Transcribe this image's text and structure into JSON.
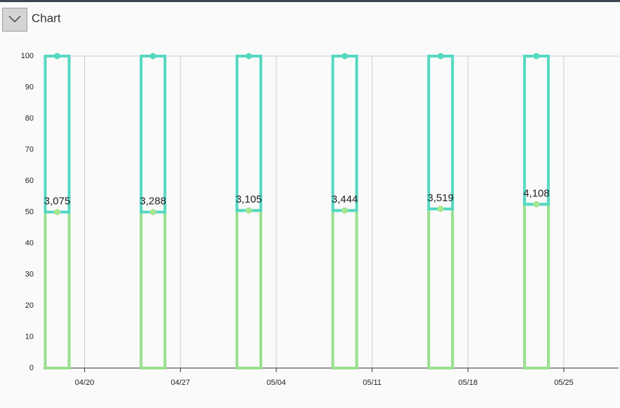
{
  "header": {
    "label": "Chart"
  },
  "chart_data": {
    "type": "bar",
    "stacked": true,
    "x": [
      "04/18",
      "04/25",
      "05/02",
      "05/09",
      "05/16",
      "05/23"
    ],
    "xlim": [
      "04/17",
      "05/29"
    ],
    "xticks": [
      "04/20",
      "04/27",
      "05/04",
      "05/11",
      "05/18",
      "05/25"
    ],
    "series": [
      {
        "color": "#98e08e",
        "values": [
          50,
          50,
          50.5,
          50.5,
          51,
          52.5
        ]
      },
      {
        "color": "#55d8c2",
        "values": [
          50,
          50,
          49.5,
          49.5,
          49,
          47.5
        ]
      }
    ],
    "annotations": [
      "3,075",
      "3,288",
      "3,105",
      "3,444",
      "3,519",
      "4,108"
    ],
    "ylim": [
      0,
      100
    ],
    "yticks": [
      0,
      10,
      20,
      30,
      40,
      50,
      60,
      70,
      80,
      90,
      100
    ],
    "grid": true
  }
}
